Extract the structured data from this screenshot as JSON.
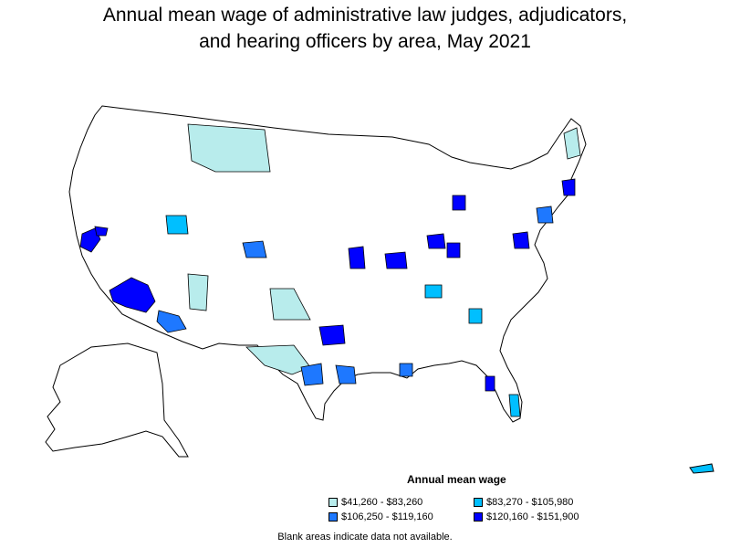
{
  "title": {
    "line1": "Annual mean wage of administrative law judges, adjudicators,",
    "line2": "and hearing officers by area, May 2021"
  },
  "legend": {
    "title": "Annual mean wage",
    "items": [
      {
        "label": "$41,260 - $83,260",
        "color": "#b8ecec"
      },
      {
        "label": "$83,270 - $105,980",
        "color": "#00bfff"
      },
      {
        "label": "$106,250 - $119,160",
        "color": "#1e78ff"
      },
      {
        "label": "$120,160 - $151,900",
        "color": "#0000ff"
      }
    ]
  },
  "footnote": "Blank areas indicate data not available.",
  "colors": {
    "no_data": "#ffffff",
    "border": "#000000"
  }
}
